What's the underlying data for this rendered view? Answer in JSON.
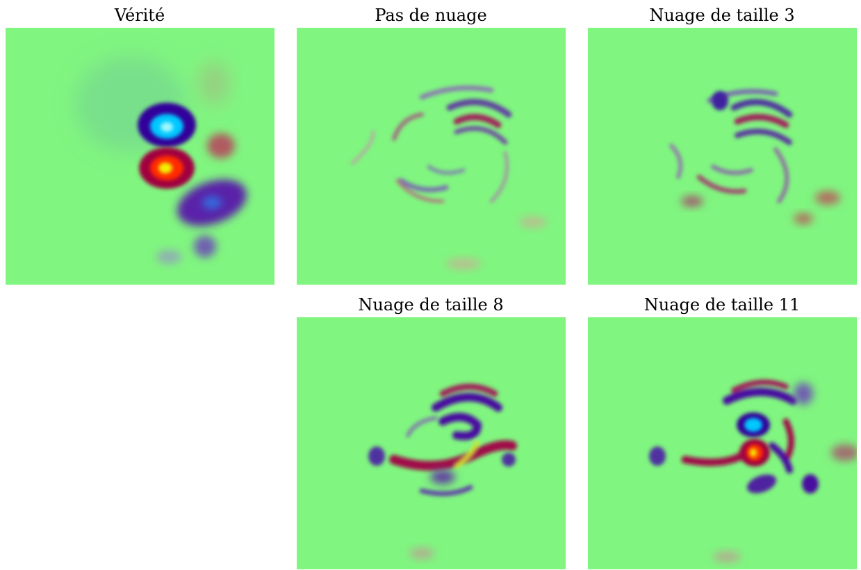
{
  "panels": [
    {
      "title": "Vérité"
    },
    {
      "title": "Pas de nuage"
    },
    {
      "title": "Nuage de taille 3"
    },
    {
      "title": "Nuage de taille 8"
    },
    {
      "title": "Nuage de taille 11"
    }
  ]
}
